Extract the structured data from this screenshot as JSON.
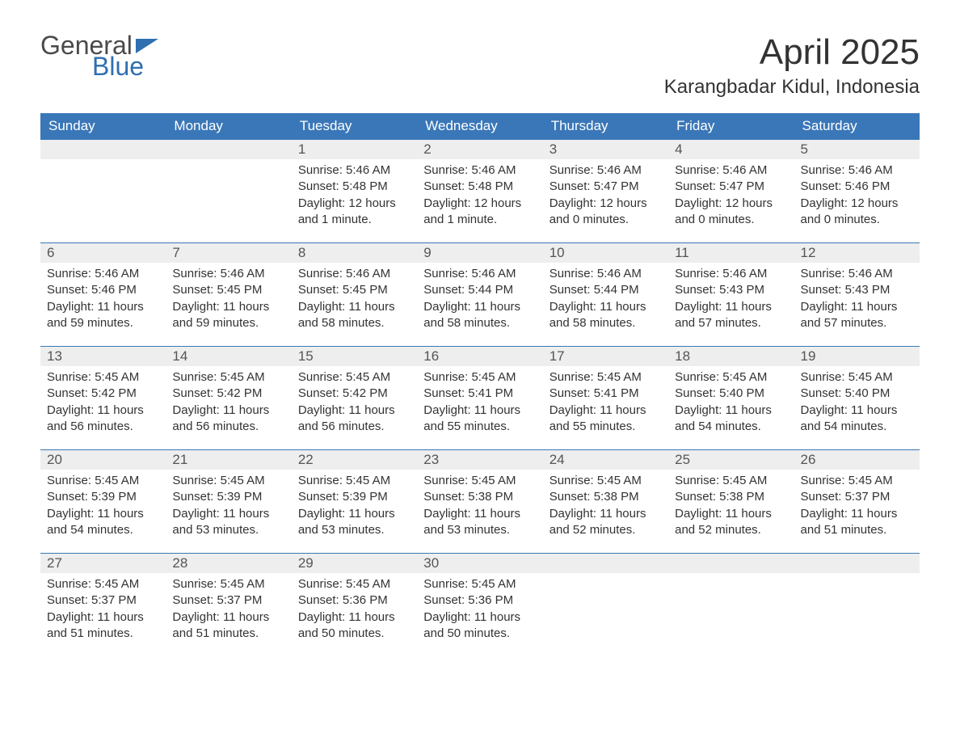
{
  "logo": {
    "part1": "General",
    "part2": "Blue"
  },
  "title": "April 2025",
  "location": "Karangbadar Kidul, Indonesia",
  "header_bg": "#3a77b8",
  "header_fg": "#ffffff",
  "daynum_bg": "#eeeeee",
  "text_color": "#333333",
  "weekdays": [
    "Sunday",
    "Monday",
    "Tuesday",
    "Wednesday",
    "Thursday",
    "Friday",
    "Saturday"
  ],
  "labels": {
    "sunrise": "Sunrise:",
    "sunset": "Sunset:",
    "daylight": "Daylight:"
  },
  "weeks": [
    [
      null,
      null,
      {
        "n": "1",
        "sr": "5:46 AM",
        "ss": "5:48 PM",
        "dl": "12 hours and 1 minute."
      },
      {
        "n": "2",
        "sr": "5:46 AM",
        "ss": "5:48 PM",
        "dl": "12 hours and 1 minute."
      },
      {
        "n": "3",
        "sr": "5:46 AM",
        "ss": "5:47 PM",
        "dl": "12 hours and 0 minutes."
      },
      {
        "n": "4",
        "sr": "5:46 AM",
        "ss": "5:47 PM",
        "dl": "12 hours and 0 minutes."
      },
      {
        "n": "5",
        "sr": "5:46 AM",
        "ss": "5:46 PM",
        "dl": "12 hours and 0 minutes."
      }
    ],
    [
      {
        "n": "6",
        "sr": "5:46 AM",
        "ss": "5:46 PM",
        "dl": "11 hours and 59 minutes."
      },
      {
        "n": "7",
        "sr": "5:46 AM",
        "ss": "5:45 PM",
        "dl": "11 hours and 59 minutes."
      },
      {
        "n": "8",
        "sr": "5:46 AM",
        "ss": "5:45 PM",
        "dl": "11 hours and 58 minutes."
      },
      {
        "n": "9",
        "sr": "5:46 AM",
        "ss": "5:44 PM",
        "dl": "11 hours and 58 minutes."
      },
      {
        "n": "10",
        "sr": "5:46 AM",
        "ss": "5:44 PM",
        "dl": "11 hours and 58 minutes."
      },
      {
        "n": "11",
        "sr": "5:46 AM",
        "ss": "5:43 PM",
        "dl": "11 hours and 57 minutes."
      },
      {
        "n": "12",
        "sr": "5:46 AM",
        "ss": "5:43 PM",
        "dl": "11 hours and 57 minutes."
      }
    ],
    [
      {
        "n": "13",
        "sr": "5:45 AM",
        "ss": "5:42 PM",
        "dl": "11 hours and 56 minutes."
      },
      {
        "n": "14",
        "sr": "5:45 AM",
        "ss": "5:42 PM",
        "dl": "11 hours and 56 minutes."
      },
      {
        "n": "15",
        "sr": "5:45 AM",
        "ss": "5:42 PM",
        "dl": "11 hours and 56 minutes."
      },
      {
        "n": "16",
        "sr": "5:45 AM",
        "ss": "5:41 PM",
        "dl": "11 hours and 55 minutes."
      },
      {
        "n": "17",
        "sr": "5:45 AM",
        "ss": "5:41 PM",
        "dl": "11 hours and 55 minutes."
      },
      {
        "n": "18",
        "sr": "5:45 AM",
        "ss": "5:40 PM",
        "dl": "11 hours and 54 minutes."
      },
      {
        "n": "19",
        "sr": "5:45 AM",
        "ss": "5:40 PM",
        "dl": "11 hours and 54 minutes."
      }
    ],
    [
      {
        "n": "20",
        "sr": "5:45 AM",
        "ss": "5:39 PM",
        "dl": "11 hours and 54 minutes."
      },
      {
        "n": "21",
        "sr": "5:45 AM",
        "ss": "5:39 PM",
        "dl": "11 hours and 53 minutes."
      },
      {
        "n": "22",
        "sr": "5:45 AM",
        "ss": "5:39 PM",
        "dl": "11 hours and 53 minutes."
      },
      {
        "n": "23",
        "sr": "5:45 AM",
        "ss": "5:38 PM",
        "dl": "11 hours and 53 minutes."
      },
      {
        "n": "24",
        "sr": "5:45 AM",
        "ss": "5:38 PM",
        "dl": "11 hours and 52 minutes."
      },
      {
        "n": "25",
        "sr": "5:45 AM",
        "ss": "5:38 PM",
        "dl": "11 hours and 52 minutes."
      },
      {
        "n": "26",
        "sr": "5:45 AM",
        "ss": "5:37 PM",
        "dl": "11 hours and 51 minutes."
      }
    ],
    [
      {
        "n": "27",
        "sr": "5:45 AM",
        "ss": "5:37 PM",
        "dl": "11 hours and 51 minutes."
      },
      {
        "n": "28",
        "sr": "5:45 AM",
        "ss": "5:37 PM",
        "dl": "11 hours and 51 minutes."
      },
      {
        "n": "29",
        "sr": "5:45 AM",
        "ss": "5:36 PM",
        "dl": "11 hours and 50 minutes."
      },
      {
        "n": "30",
        "sr": "5:45 AM",
        "ss": "5:36 PM",
        "dl": "11 hours and 50 minutes."
      },
      null,
      null,
      null
    ]
  ]
}
